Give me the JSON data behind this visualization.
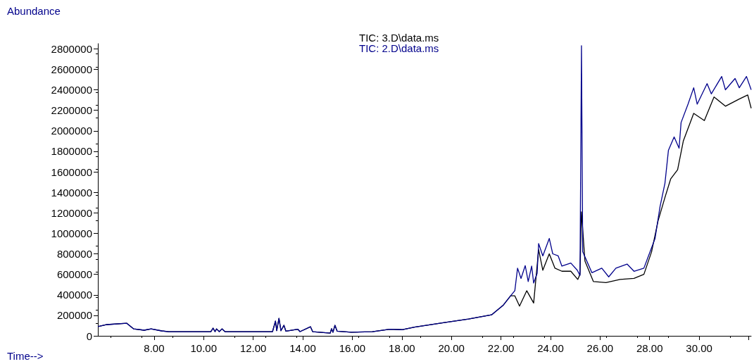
{
  "chart_data": {
    "type": "line",
    "xlabel": "Time-->",
    "ylabel": "Abundance",
    "legend": "top",
    "grid": false,
    "marker": "none",
    "line_style": "solid",
    "xlim": [
      5.73,
      32.1
    ],
    "xticks": [
      {
        "value": 8,
        "label": "8.00"
      },
      {
        "value": 10,
        "label": "10.00"
      },
      {
        "value": 12,
        "label": "12.00"
      },
      {
        "value": 14,
        "label": "14.00"
      },
      {
        "value": 16,
        "label": "16.00"
      },
      {
        "value": 18,
        "label": "18.00"
      },
      {
        "value": 20,
        "label": "20.00"
      },
      {
        "value": 22,
        "label": "22.00"
      },
      {
        "value": 24,
        "label": "24.00"
      },
      {
        "value": 26,
        "label": "26.00"
      },
      {
        "value": 28,
        "label": "28.00"
      },
      {
        "value": 30,
        "label": "30.00"
      },
      {
        "value": 32,
        "label": null
      }
    ],
    "ylim": [
      0,
      2850000
    ],
    "yticks": [
      0,
      200000,
      400000,
      600000,
      800000,
      1000000,
      1200000,
      1400000,
      1600000,
      1800000,
      2000000,
      2200000,
      2400000,
      2600000,
      2800000
    ],
    "series": [
      {
        "name": "TIC: 3.D\\data.ms",
        "color": "#000000",
        "x": [
          5.73,
          6.1,
          6.89,
          7.17,
          7.6,
          7.88,
          8.31,
          8.59,
          10.29,
          10.38,
          10.46,
          10.52,
          10.63,
          10.74,
          10.86,
          12.78,
          12.9,
          12.95,
          13.04,
          13.12,
          13.24,
          13.32,
          13.8,
          13.89,
          14.31,
          14.4,
          15.11,
          15.16,
          15.22,
          15.3,
          15.39,
          15.96,
          16.81,
          17.51,
          18.0,
          18.51,
          18.79,
          19.72,
          20.69,
          21.62,
          22.1,
          22.39,
          22.56,
          22.75,
          23.04,
          23.32,
          23.52,
          23.69,
          23.95,
          24.18,
          24.46,
          24.82,
          25.1,
          25.19,
          25.25,
          25.39,
          25.73,
          26.24,
          26.81,
          27.37,
          27.77,
          28.08,
          28.34,
          28.62,
          28.85,
          29.13,
          29.36,
          29.78,
          30.21,
          30.6,
          31.06,
          31.62,
          31.96,
          32.1
        ],
        "values": [
          90000,
          110000,
          123000,
          68000,
          55000,
          68000,
          48000,
          41000,
          41000,
          75000,
          41000,
          68000,
          41000,
          68000,
          41000,
          41000,
          144000,
          50000,
          171000,
          50000,
          103000,
          45000,
          65000,
          41000,
          89000,
          41000,
          27000,
          70000,
          35000,
          103000,
          45000,
          35000,
          40000,
          65000,
          60000,
          85000,
          96000,
          130000,
          164000,
          205000,
          301000,
          390000,
          390000,
          290000,
          440000,
          320000,
          840000,
          640000,
          800000,
          660000,
          630000,
          630000,
          550000,
          600000,
          1210000,
          730000,
          530000,
          520000,
          550000,
          560000,
          600000,
          820000,
          1120000,
          1350000,
          1530000,
          1620000,
          1900000,
          2170000,
          2100000,
          2330000,
          2240000,
          2310000,
          2350000,
          2220000
        ]
      },
      {
        "name": "TIC: 2.D\\data.ms",
        "color": "#00008b",
        "x": [
          5.73,
          6.1,
          6.89,
          7.17,
          7.6,
          7.88,
          8.31,
          8.59,
          10.29,
          10.38,
          10.46,
          10.52,
          10.63,
          10.74,
          10.86,
          12.78,
          12.9,
          12.95,
          13.04,
          13.12,
          13.24,
          13.32,
          13.8,
          13.89,
          14.31,
          14.4,
          15.11,
          15.16,
          15.22,
          15.3,
          15.39,
          15.96,
          16.81,
          17.51,
          18.0,
          18.51,
          18.79,
          19.72,
          20.69,
          21.62,
          22.1,
          22.39,
          22.56,
          22.67,
          22.81,
          22.98,
          23.1,
          23.24,
          23.32,
          23.46,
          23.52,
          23.69,
          23.95,
          24.09,
          24.31,
          24.46,
          24.82,
          25.08,
          25.19,
          25.25,
          25.3,
          25.5,
          25.67,
          26.07,
          26.35,
          26.64,
          27.09,
          27.37,
          27.77,
          27.91,
          28.22,
          28.42,
          28.62,
          28.76,
          28.99,
          29.19,
          29.27,
          29.55,
          29.78,
          29.92,
          30.32,
          30.49,
          30.91,
          31.06,
          31.45,
          31.62,
          31.91,
          32.1
        ],
        "values": [
          90000,
          110000,
          123000,
          68000,
          55000,
          68000,
          48000,
          41000,
          41000,
          75000,
          41000,
          68000,
          41000,
          68000,
          41000,
          41000,
          144000,
          50000,
          171000,
          50000,
          103000,
          45000,
          65000,
          41000,
          89000,
          41000,
          27000,
          70000,
          35000,
          103000,
          45000,
          35000,
          40000,
          65000,
          60000,
          85000,
          96000,
          130000,
          164000,
          205000,
          301000,
          390000,
          440000,
          660000,
          560000,
          685000,
          530000,
          680000,
          515000,
          610000,
          900000,
          780000,
          950000,
          800000,
          780000,
          680000,
          710000,
          640000,
          590000,
          2830000,
          820000,
          710000,
          616000,
          660000,
          575000,
          660000,
          700000,
          630000,
          660000,
          750000,
          950000,
          1260000,
          1490000,
          1810000,
          1940000,
          1830000,
          2080000,
          2260000,
          2420000,
          2260000,
          2460000,
          2360000,
          2530000,
          2400000,
          2510000,
          2420000,
          2530000,
          2400000
        ]
      }
    ]
  }
}
